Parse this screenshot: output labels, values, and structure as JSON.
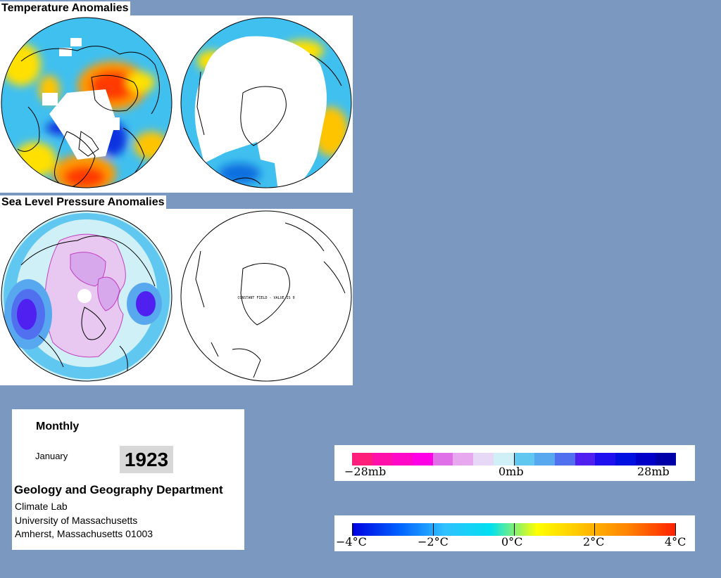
{
  "titles": {
    "temperature": "Temperature Anomalies",
    "pressure": "Sea Level Pressure Anomalies"
  },
  "slp_south_note": "CONSTANT FIELD - VALUE IS 0",
  "info": {
    "period": "Monthly",
    "month": "January",
    "year": "1923",
    "department": "Geology and Geography Department",
    "lab": "Climate Lab",
    "university": "University of Massachusetts",
    "address": "Amherst, Massachusetts 01003"
  },
  "pressure_legend": {
    "labels": [
      "−28mb",
      "0mb",
      "28mb"
    ],
    "colors": [
      "#ff1f7a",
      "#ff10a8",
      "#ff08c8",
      "#ff00e6",
      "#e070e8",
      "#e8a8f0",
      "#e8d8f8",
      "#d0f0f8",
      "#60c8f0",
      "#58a8f0",
      "#5070f0",
      "#5020f0",
      "#2010f0",
      "#0010e0",
      "#0000c8",
      "#0000a8"
    ]
  },
  "temperature_legend": {
    "labels": [
      "−4°C",
      "−2°C",
      "0°C",
      "2°C",
      "4°C"
    ],
    "gradient": [
      "#0000e0",
      "#0060ff",
      "#30c0ff",
      "#00e0f0",
      "#ffff00",
      "#ffc000",
      "#ff8000",
      "#ff2000"
    ]
  }
}
